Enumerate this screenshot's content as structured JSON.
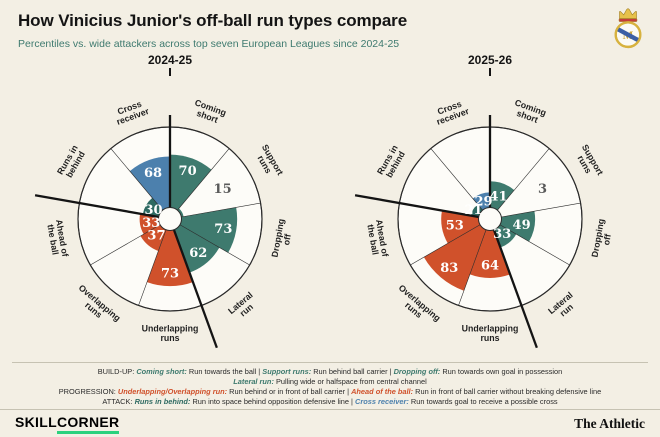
{
  "page": {
    "title": "How Vinicius Junior's off-ball run types compare",
    "subtitle": "Percentiles vs. wide attackers across top seven European Leagues since 2024-25"
  },
  "branding": {
    "club_crest": "Real Madrid crest",
    "skillcorner_logo": {
      "part1": "SKILL",
      "part2": "CORNER"
    },
    "publication": "The Athletic"
  },
  "colors": {
    "background": "#f3efe4",
    "chart_face": "#fdfcf8",
    "title": "#141414",
    "subtitle": "#3e7a6f",
    "build_up": "#3e7a6e",
    "progression": "#d0512b",
    "runs_in_behind": "#2e6a62",
    "cross_receiver": "#4c80ad",
    "skillcorner_green": "#2bd17e"
  },
  "chart_data": [
    {
      "type": "pie",
      "variant": "pizza-percentile",
      "title": "2024-25",
      "unit": "percentile",
      "scale": [
        0,
        100
      ],
      "categories": [
        "Coming short",
        "Support runs",
        "Dropping off",
        "Lateral run",
        "Underlapping runs",
        "Overlapping runs",
        "Ahead of the ball",
        "Runs in behind",
        "Cross receiver"
      ],
      "values": [
        70,
        15,
        73,
        62,
        73,
        37,
        33,
        30,
        68
      ],
      "groups": [
        "build_up",
        "build_up",
        "build_up",
        "build_up",
        "progression",
        "progression",
        "progression",
        "runs_in_behind",
        "cross_receiver"
      ]
    },
    {
      "type": "pie",
      "variant": "pizza-percentile",
      "title": "2025-26",
      "unit": "percentile",
      "scale": [
        0,
        100
      ],
      "categories": [
        "Coming short",
        "Support runs",
        "Dropping off",
        "Lateral run",
        "Underlapping runs",
        "Overlapping runs",
        "Ahead of the ball",
        "Runs in behind",
        "Cross receiver"
      ],
      "values": [
        41,
        3,
        49,
        33,
        64,
        83,
        53,
        21,
        29
      ],
      "groups": [
        "build_up",
        "build_up",
        "build_up",
        "build_up",
        "progression",
        "progression",
        "progression",
        "runs_in_behind",
        "cross_receiver"
      ]
    }
  ],
  "legend": {
    "lines": [
      [
        {
          "t": "BUILD-UP: ",
          "c": "plain"
        },
        {
          "t": "Coming short:",
          "c": "build_up"
        },
        {
          "t": " Run towards the ball | ",
          "c": "plain"
        },
        {
          "t": "Support runs:",
          "c": "build_up"
        },
        {
          "t": " Run behind ball carrier | ",
          "c": "plain"
        },
        {
          "t": "Dropping off:",
          "c": "build_up"
        },
        {
          "t": " Run towards own goal in possession",
          "c": "plain"
        }
      ],
      [
        {
          "t": "Lateral run:",
          "c": "build_up"
        },
        {
          "t": " Pulling wide or halfspace from central channel",
          "c": "plain"
        }
      ],
      [
        {
          "t": "PROGRESSION: ",
          "c": "plain"
        },
        {
          "t": "Underlapping/Overlapping run:",
          "c": "progression"
        },
        {
          "t": " Run behind or in front of ball carrier | ",
          "c": "plain"
        },
        {
          "t": "Ahead of the ball:",
          "c": "progression"
        },
        {
          "t": " Run in front of ball carrier without breaking defensive line",
          "c": "plain"
        }
      ],
      [
        {
          "t": "ATTACK: ",
          "c": "plain"
        },
        {
          "t": "Runs in behind:",
          "c": "runs_in_behind"
        },
        {
          "t": " Run into space behind opposition defensive line | ",
          "c": "plain"
        },
        {
          "t": "Cross receiver:",
          "c": "cross_receiver"
        },
        {
          "t": " Run towards goal to receive a possible cross",
          "c": "plain"
        }
      ]
    ]
  }
}
